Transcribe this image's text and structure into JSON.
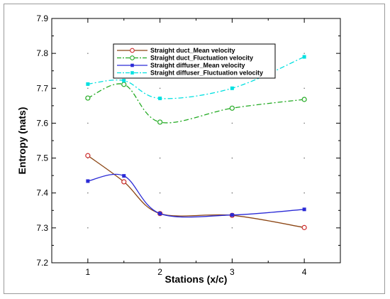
{
  "chart_data": {
    "type": "line",
    "title": "",
    "xlabel": "Stations (x/c)",
    "ylabel": "Entropy (nats)",
    "xlim": [
      0.5,
      4.5
    ],
    "ylim": [
      7.2,
      7.9
    ],
    "x_ticks": [
      "1",
      "2",
      "3",
      "4"
    ],
    "y_ticks": [
      "7.2",
      "7.3",
      "7.4",
      "7.5",
      "7.6",
      "7.7",
      "7.8",
      "7.9"
    ],
    "grid": "dotted",
    "legend_position": "top-center",
    "series": [
      {
        "name": "Straight duct_Mean velocity",
        "color": "#8b4513",
        "marker": "circle",
        "marker_color": "#cc2a2a",
        "line_style": "solid",
        "x": [
          1,
          1.5,
          2,
          3,
          4
        ],
        "y": [
          7.507,
          7.432,
          7.341,
          7.336,
          7.301
        ]
      },
      {
        "name": "Straight duct_Fluctuation velocity",
        "color": "#22aa22",
        "marker": "circle",
        "marker_color": "#22aa22",
        "line_style": "dash-dot",
        "x": [
          1,
          1.5,
          2,
          3,
          4
        ],
        "y": [
          7.672,
          7.711,
          7.603,
          7.643,
          7.668
        ]
      },
      {
        "name": "Straight diffuser_Mean velocity",
        "color": "#2a2ad6",
        "marker": "square",
        "marker_color": "#2a2ad6",
        "line_style": "solid",
        "x": [
          1,
          1.5,
          2,
          3,
          4
        ],
        "y": [
          7.434,
          7.449,
          7.341,
          7.337,
          7.353
        ]
      },
      {
        "name": "Straight diffuser_Fluctuation velocity",
        "color": "#00e0e0",
        "marker": "square",
        "marker_color": "#00e0e0",
        "line_style": "dash-dot",
        "x": [
          1,
          1.5,
          2,
          3,
          4
        ],
        "y": [
          7.712,
          7.722,
          7.671,
          7.7,
          7.79
        ]
      }
    ]
  }
}
